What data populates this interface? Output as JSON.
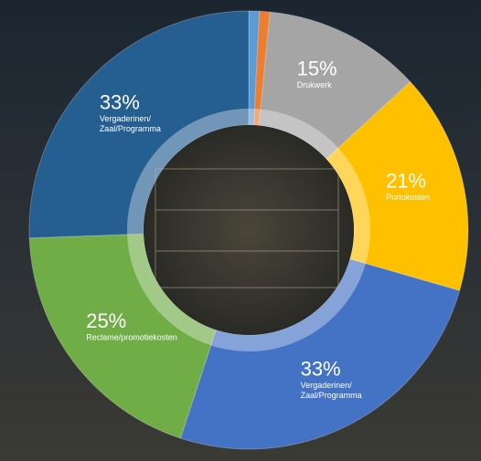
{
  "chart_data": {
    "type": "donut",
    "categories": [
      null,
      null,
      [
        "Drukwerk"
      ],
      [
        "Portokosten"
      ],
      [
        "Vergaderinen/",
        "Zaal/Programma"
      ],
      [
        "Reclame/promotiekosten"
      ],
      [
        "Vergaderinen/",
        "Zaal/Programma"
      ]
    ],
    "values": [
      1,
      1,
      15,
      21,
      33,
      25,
      33
    ],
    "value_labels": [
      null,
      null,
      "15%",
      "21%",
      "33%",
      "25%",
      "33%"
    ],
    "colors": [
      "#5b9bd5",
      "#ed7d31",
      "#a5a5a5",
      "#ffc000",
      "#4472c4",
      "#70ad47",
      "#255e91"
    ]
  }
}
